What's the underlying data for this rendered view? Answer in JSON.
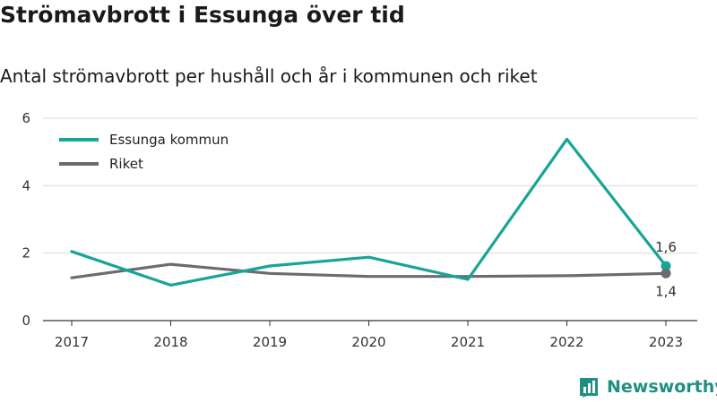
{
  "title": "Strömavbrott i Essunga över tid",
  "subtitle": "Antal strömavbrott per hushåll och år i kommunen och riket",
  "brand": "Newsworthy",
  "chart_data": {
    "type": "line",
    "x": [
      "2017",
      "2018",
      "2019",
      "2020",
      "2021",
      "2022",
      "2023"
    ],
    "y_ticks": [
      "0",
      "2",
      "4",
      "6"
    ],
    "ylim": [
      0,
      6
    ],
    "grid": true,
    "legend_position": "top-left",
    "series": [
      {
        "name": "Essunga kommun",
        "color": "#16a596",
        "values": [
          2.05,
          1.05,
          1.62,
          1.88,
          1.22,
          5.38,
          1.62
        ],
        "end_label": "1,6"
      },
      {
        "name": "Riket",
        "color": "#6c6b72",
        "values": [
          1.27,
          1.67,
          1.4,
          1.31,
          1.31,
          1.33,
          1.4
        ],
        "end_label": "1,4"
      }
    ]
  }
}
